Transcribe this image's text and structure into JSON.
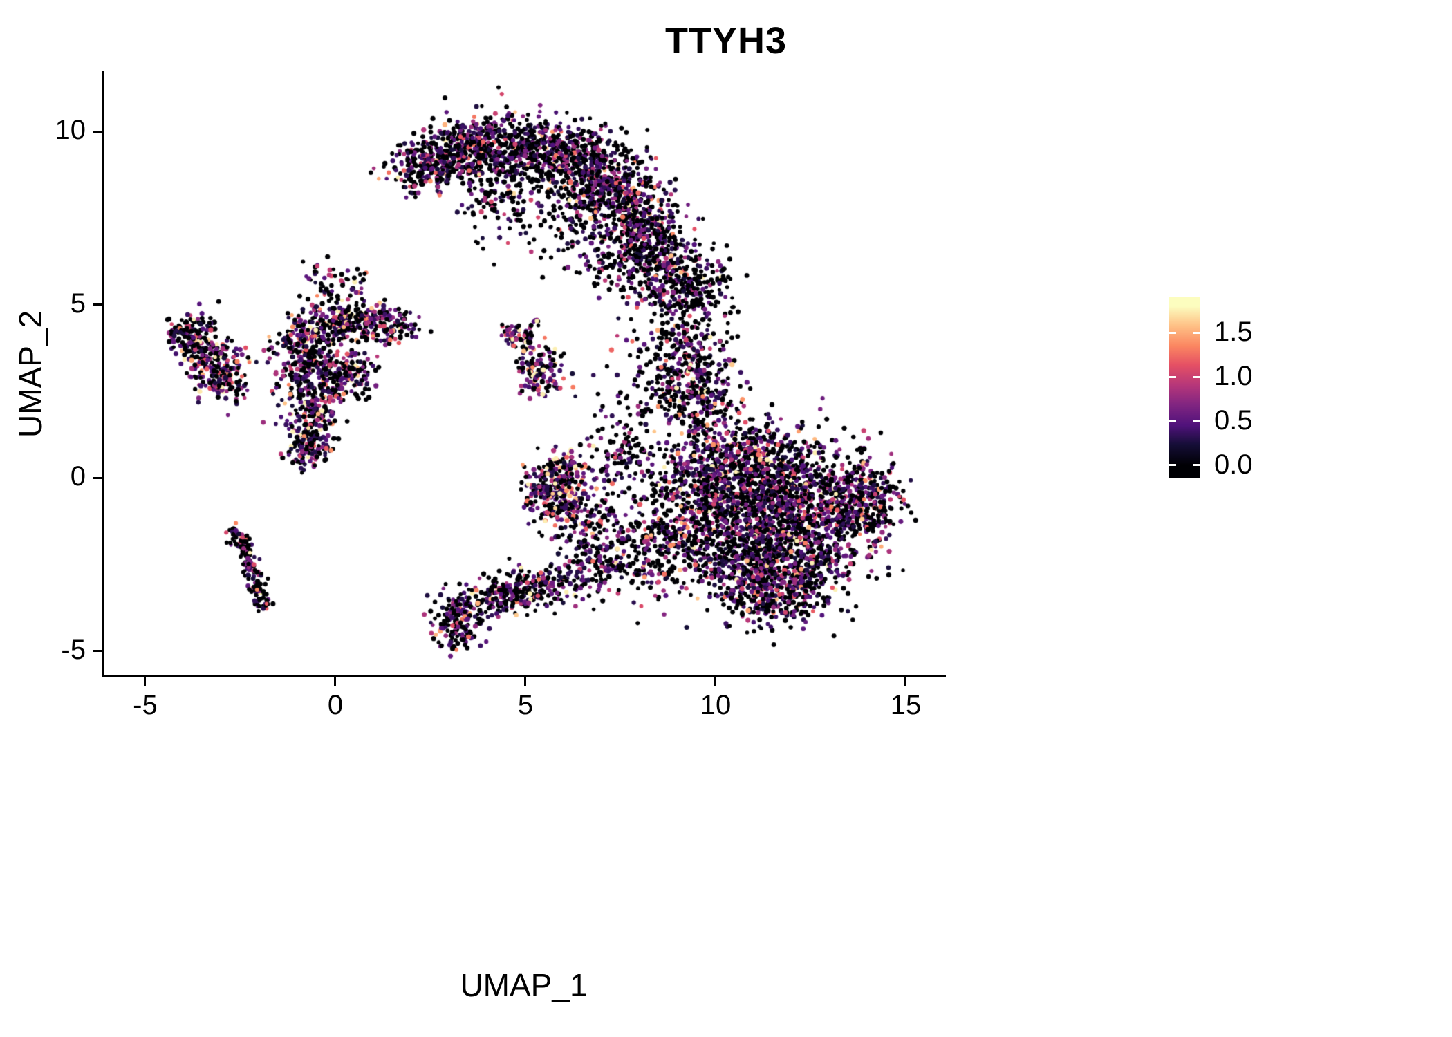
{
  "chart_data": {
    "type": "scatter",
    "title": "TTYH3",
    "xlabel": "UMAP_1",
    "ylabel": "UMAP_2",
    "xlim": [
      -6.09,
      16.0
    ],
    "ylim": [
      -5.7,
      11.7
    ],
    "xticks": [
      -5,
      0,
      5,
      10,
      15
    ],
    "yticks": [
      -5,
      0,
      5,
      10
    ],
    "grid": false,
    "legend_position": "right",
    "point_color_black": "#000004",
    "colorbar": {
      "ticks": [
        0.0,
        0.5,
        1.0,
        1.5
      ],
      "value_range": [
        0,
        1.8
      ],
      "bar_range": [
        -0.15,
        1.9
      ],
      "colormap": "magma",
      "stops": [
        {
          "t": 0.0,
          "c": "#000004"
        },
        {
          "t": 0.13,
          "c": "#150e37"
        },
        {
          "t": 0.25,
          "c": "#50127b"
        },
        {
          "t": 0.38,
          "c": "#812581"
        },
        {
          "t": 0.5,
          "c": "#b5367a"
        },
        {
          "t": 0.63,
          "c": "#e55064"
        },
        {
          "t": 0.75,
          "c": "#fb8761"
        },
        {
          "t": 0.88,
          "c": "#fec287"
        },
        {
          "t": 1.0,
          "c": "#fcfdbf"
        }
      ]
    },
    "clusters": [
      {
        "x": 2.3,
        "y": 8.9,
        "sx": 0.45,
        "sy": 0.4,
        "n": 170,
        "p0": 0.52,
        "m": 0.38
      },
      {
        "x": 3.2,
        "y": 9.4,
        "sx": 0.55,
        "sy": 0.45,
        "n": 250,
        "p0": 0.52,
        "m": 0.38
      },
      {
        "x": 4.4,
        "y": 9.6,
        "sx": 0.65,
        "sy": 0.5,
        "n": 300,
        "p0": 0.52,
        "m": 0.38
      },
      {
        "x": 5.7,
        "y": 9.3,
        "sx": 0.7,
        "sy": 0.55,
        "n": 320,
        "p0": 0.52,
        "m": 0.38
      },
      {
        "x": 6.8,
        "y": 8.8,
        "sx": 0.6,
        "sy": 0.6,
        "n": 300,
        "p0": 0.52,
        "m": 0.38
      },
      {
        "x": 7.7,
        "y": 7.9,
        "sx": 0.55,
        "sy": 0.6,
        "n": 280,
        "p0": 0.52,
        "m": 0.38
      },
      {
        "x": 8.3,
        "y": 6.8,
        "sx": 0.5,
        "sy": 0.65,
        "n": 260,
        "p0": 0.52,
        "m": 0.38
      },
      {
        "x": 8.8,
        "y": 5.8,
        "sx": 0.45,
        "sy": 0.55,
        "n": 170,
        "p0": 0.52,
        "m": 0.38
      },
      {
        "x": 5.3,
        "y": 8.2,
        "sx": 1.1,
        "sy": 0.7,
        "n": 140,
        "p0": 0.62,
        "m": 0.38
      },
      {
        "x": 6.9,
        "y": 6.9,
        "sx": 0.8,
        "sy": 0.6,
        "n": 110,
        "p0": 0.62,
        "m": 0.38
      },
      {
        "x": 7.4,
        "y": 5.9,
        "sx": 0.5,
        "sy": 0.4,
        "n": 50,
        "p0": 0.7,
        "m": 0.38
      },
      {
        "x": 4.0,
        "y": 8.0,
        "sx": 0.5,
        "sy": 0.6,
        "n": 60,
        "p0": 0.62,
        "m": 0.38
      },
      {
        "x": 9.3,
        "y": 4.8,
        "sx": 0.5,
        "sy": 0.8,
        "n": 140,
        "p0": 0.65,
        "m": 0.4
      },
      {
        "x": 9.1,
        "y": 3.3,
        "sx": 0.55,
        "sy": 0.6,
        "n": 180,
        "p0": 0.5,
        "m": 0.45
      },
      {
        "x": 9.6,
        "y": 2.3,
        "sx": 0.45,
        "sy": 0.55,
        "n": 160,
        "p0": 0.45,
        "m": 0.45
      },
      {
        "x": 8.4,
        "y": 2.6,
        "sx": 0.7,
        "sy": 0.9,
        "n": 100,
        "p0": 0.65,
        "m": 0.4
      },
      {
        "x": 9.9,
        "y": 5.6,
        "sx": 0.35,
        "sy": 0.5,
        "n": 60,
        "p0": 0.62,
        "m": 0.4
      },
      {
        "x": 10.3,
        "y": 0.4,
        "sx": 0.8,
        "sy": 0.7,
        "n": 330,
        "p0": 0.48,
        "m": 0.42
      },
      {
        "x": 11.5,
        "y": 0.4,
        "sx": 0.9,
        "sy": 0.6,
        "n": 300,
        "p0": 0.48,
        "m": 0.42
      },
      {
        "x": 10.5,
        "y": -1.0,
        "sx": 0.9,
        "sy": 0.8,
        "n": 400,
        "p0": 0.48,
        "m": 0.42
      },
      {
        "x": 11.8,
        "y": -1.2,
        "sx": 1.0,
        "sy": 0.8,
        "n": 450,
        "p0": 0.48,
        "m": 0.42
      },
      {
        "x": 12.9,
        "y": -0.5,
        "sx": 0.8,
        "sy": 0.7,
        "n": 330,
        "p0": 0.48,
        "m": 0.42
      },
      {
        "x": 13.8,
        "y": -0.9,
        "sx": 0.5,
        "sy": 0.6,
        "n": 190,
        "p0": 0.48,
        "m": 0.42
      },
      {
        "x": 11.0,
        "y": -2.5,
        "sx": 0.9,
        "sy": 0.7,
        "n": 380,
        "p0": 0.48,
        "m": 0.42
      },
      {
        "x": 12.3,
        "y": -2.6,
        "sx": 0.8,
        "sy": 0.6,
        "n": 280,
        "p0": 0.48,
        "m": 0.42
      },
      {
        "x": 11.4,
        "y": -3.4,
        "sx": 0.7,
        "sy": 0.45,
        "n": 230,
        "p0": 0.48,
        "m": 0.42
      },
      {
        "x": 9.6,
        "y": -0.2,
        "sx": 0.5,
        "sy": 0.8,
        "n": 190,
        "p0": 0.48,
        "m": 0.42
      },
      {
        "x": 9.0,
        "y": -1.3,
        "sx": 0.6,
        "sy": 0.8,
        "n": 170,
        "p0": 0.55,
        "m": 0.42
      },
      {
        "x": 8.3,
        "y": -2.1,
        "sx": 0.6,
        "sy": 0.7,
        "n": 130,
        "p0": 0.6,
        "m": 0.42
      },
      {
        "x": 14.2,
        "y": -0.6,
        "sx": 0.3,
        "sy": 0.5,
        "n": 70,
        "p0": 0.48,
        "m": 0.42
      },
      {
        "x": 5.7,
        "y": -0.4,
        "sx": 0.35,
        "sy": 0.5,
        "n": 220,
        "p0": 0.35,
        "m": 0.55
      },
      {
        "x": 6.1,
        "y": 0.2,
        "sx": 0.3,
        "sy": 0.35,
        "n": 80,
        "p0": 0.35,
        "m": 0.55
      },
      {
        "x": 6.3,
        "y": -1.3,
        "sx": 0.3,
        "sy": 0.5,
        "n": 60,
        "p0": 0.55,
        "m": 0.5
      },
      {
        "x": 3.2,
        "y": -4.1,
        "sx": 0.3,
        "sy": 0.4,
        "n": 170,
        "p0": 0.45,
        "m": 0.45
      },
      {
        "type": "line",
        "x1": 3.6,
        "y1": -3.7,
        "x2": 6.6,
        "y2": -2.8,
        "j": 0.28,
        "n": 220,
        "p0": 0.5,
        "m": 0.45
      },
      {
        "x": 4.7,
        "y": -3.3,
        "sx": 0.5,
        "sy": 0.35,
        "n": 110,
        "p0": 0.5,
        "m": 0.45
      },
      {
        "x": 7.1,
        "y": -2.5,
        "sx": 0.45,
        "sy": 0.45,
        "n": 110,
        "p0": 0.55,
        "m": 0.45
      },
      {
        "x": 7.1,
        "y": -0.9,
        "sx": 0.45,
        "sy": 1.0,
        "n": 120,
        "p0": 0.6,
        "m": 0.45
      },
      {
        "x": 7.6,
        "y": 0.8,
        "sx": 0.5,
        "sy": 0.7,
        "n": 90,
        "p0": 0.6,
        "m": 0.45
      },
      {
        "x": -0.2,
        "y": 4.4,
        "sx": 0.5,
        "sy": 0.35,
        "n": 150,
        "p0": 0.42,
        "m": 0.5
      },
      {
        "x": 0.7,
        "y": 4.5,
        "sx": 0.5,
        "sy": 0.3,
        "n": 140,
        "p0": 0.42,
        "m": 0.5
      },
      {
        "x": 1.5,
        "y": 4.4,
        "sx": 0.35,
        "sy": 0.25,
        "n": 70,
        "p0": 0.42,
        "m": 0.5
      },
      {
        "x": -0.9,
        "y": 3.9,
        "sx": 0.35,
        "sy": 0.4,
        "n": 100,
        "p0": 0.42,
        "m": 0.5
      },
      {
        "x": -0.3,
        "y": 3.2,
        "sx": 0.5,
        "sy": 0.5,
        "n": 150,
        "p0": 0.42,
        "m": 0.5
      },
      {
        "x": 0.4,
        "y": 2.9,
        "sx": 0.4,
        "sy": 0.4,
        "n": 110,
        "p0": 0.42,
        "m": 0.5
      },
      {
        "x": -0.9,
        "y": 2.6,
        "sx": 0.4,
        "sy": 0.5,
        "n": 110,
        "p0": 0.42,
        "m": 0.5
      },
      {
        "x": -0.5,
        "y": 1.6,
        "sx": 0.3,
        "sy": 0.5,
        "n": 130,
        "p0": 0.42,
        "m": 0.5
      },
      {
        "x": -0.8,
        "y": 0.9,
        "sx": 0.25,
        "sy": 0.35,
        "n": 110,
        "p0": 0.35,
        "m": 0.5
      },
      {
        "x": -0.3,
        "y": 5.4,
        "sx": 0.35,
        "sy": 0.45,
        "n": 50,
        "p0": 0.55,
        "m": 0.5
      },
      {
        "x": 0.6,
        "y": 5.5,
        "sx": 0.2,
        "sy": 0.3,
        "n": 25,
        "p0": 0.5,
        "m": 0.5
      },
      {
        "x": -3.6,
        "y": 3.9,
        "sx": 0.35,
        "sy": 0.4,
        "n": 140,
        "p0": 0.45,
        "m": 0.5
      },
      {
        "x": -3.1,
        "y": 3.2,
        "sx": 0.4,
        "sy": 0.4,
        "n": 130,
        "p0": 0.45,
        "m": 0.5
      },
      {
        "x": -3.9,
        "y": 4.25,
        "sx": 0.25,
        "sy": 0.2,
        "n": 60,
        "p0": 0.45,
        "m": 0.5
      },
      {
        "x": -2.9,
        "y": 2.7,
        "sx": 0.3,
        "sy": 0.25,
        "n": 70,
        "p0": 0.45,
        "m": 0.5
      },
      {
        "type": "line",
        "x1": -2.6,
        "y1": -1.5,
        "x2": -1.85,
        "y2": -3.75,
        "j": 0.12,
        "n": 170,
        "p0": 0.55,
        "m": 0.4
      },
      {
        "x": 4.7,
        "y": 4.15,
        "sx": 0.16,
        "sy": 0.16,
        "n": 40,
        "p0": 0.35,
        "m": 0.6
      },
      {
        "x": 5.45,
        "y": 3.1,
        "sx": 0.3,
        "sy": 0.38,
        "n": 130,
        "p0": 0.35,
        "m": 0.6
      },
      {
        "type": "line",
        "x1": 4.9,
        "y1": 3.6,
        "x2": 5.3,
        "y2": 4.6,
        "j": 0.1,
        "n": 30,
        "p0": 0.5,
        "m": 0.5
      }
    ]
  }
}
